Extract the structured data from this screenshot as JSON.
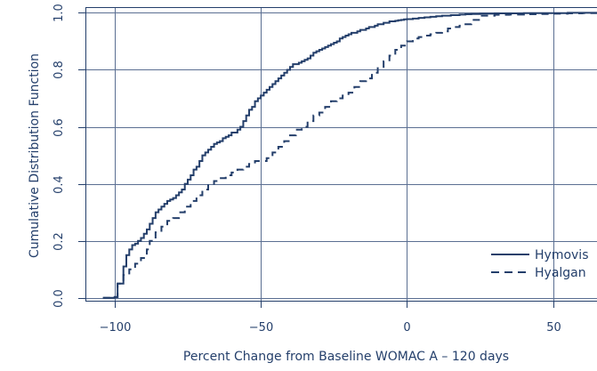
{
  "chart_data": {
    "type": "line",
    "title": "",
    "xlabel": "Percent Change from Baseline WOMAC A – 120 days",
    "ylabel": "Cumulative Distribution Function",
    "xlim": [
      -110,
      65
    ],
    "ylim": [
      -0.01,
      1.02
    ],
    "x_ticks": [
      -100,
      -50,
      0,
      50
    ],
    "x_tick_labels": [
      "−100",
      "−50",
      "0",
      "50"
    ],
    "y_ticks": [
      0,
      0.2,
      0.4,
      0.6,
      0.8,
      1.0
    ],
    "y_tick_labels": [
      "0.0",
      "0.2",
      "0.4",
      "0.6",
      "0.8",
      "1.0"
    ],
    "grid": true,
    "legend_position": "bottom-right",
    "colors": {
      "ink": "#243f6b",
      "grid": "#5b6f92"
    },
    "series": [
      {
        "name": "Hymovis",
        "line_style": "solid",
        "x": [
          -104,
          -100,
          -99,
          -97,
          -96,
          -95,
          -94,
          -93,
          -92,
          -91,
          -90,
          -89,
          -88,
          -87,
          -86,
          -85,
          -84,
          -83,
          -82,
          -81,
          -80,
          -79,
          -78,
          -77,
          -76,
          -75,
          -74,
          -73,
          -72,
          -71,
          -70,
          -69,
          -68,
          -67,
          -66,
          -65,
          -64,
          -63,
          -62,
          -61,
          -60,
          -59,
          -58,
          -57,
          -56,
          -55,
          -54,
          -53,
          -52,
          -51,
          -50,
          -49,
          -48,
          -47,
          -46,
          -45,
          -44,
          -43,
          -42,
          -41,
          -40,
          -39,
          -38,
          -37,
          -36,
          -35,
          -34,
          -33,
          -32,
          -31,
          -30,
          -29,
          -28,
          -27,
          -26,
          -25,
          -24,
          -23,
          -22,
          -21,
          -20,
          -19,
          -18,
          -17,
          -16,
          -15,
          -14,
          -13,
          -12,
          -11,
          -10,
          -9,
          -8,
          -7,
          -6,
          -5,
          -4,
          -3,
          -2,
          -1,
          0,
          2,
          4,
          6,
          8,
          10,
          12,
          15,
          18,
          20,
          22,
          25,
          30,
          35,
          40,
          45,
          50,
          55,
          60,
          63
        ],
        "y": [
          0.0,
          0.003,
          0.05,
          0.11,
          0.15,
          0.17,
          0.185,
          0.19,
          0.2,
          0.21,
          0.225,
          0.24,
          0.26,
          0.28,
          0.3,
          0.31,
          0.32,
          0.33,
          0.34,
          0.345,
          0.35,
          0.36,
          0.37,
          0.38,
          0.4,
          0.415,
          0.43,
          0.45,
          0.46,
          0.48,
          0.5,
          0.51,
          0.52,
          0.53,
          0.54,
          0.545,
          0.55,
          0.56,
          0.565,
          0.57,
          0.58,
          0.58,
          0.59,
          0.6,
          0.62,
          0.64,
          0.66,
          0.67,
          0.69,
          0.7,
          0.71,
          0.72,
          0.73,
          0.74,
          0.75,
          0.76,
          0.77,
          0.78,
          0.79,
          0.8,
          0.81,
          0.82,
          0.82,
          0.825,
          0.83,
          0.835,
          0.84,
          0.85,
          0.86,
          0.865,
          0.87,
          0.875,
          0.88,
          0.885,
          0.89,
          0.895,
          0.9,
          0.91,
          0.915,
          0.92,
          0.925,
          0.93,
          0.93,
          0.935,
          0.94,
          0.94,
          0.945,
          0.95,
          0.95,
          0.955,
          0.96,
          0.96,
          0.965,
          0.965,
          0.97,
          0.97,
          0.972,
          0.974,
          0.975,
          0.977,
          0.978,
          0.98,
          0.982,
          0.984,
          0.986,
          0.988,
          0.99,
          0.992,
          0.994,
          0.995,
          0.996,
          0.997,
          0.998,
          0.998,
          0.999,
          0.999,
          0.999,
          1.0,
          1.0,
          1.0
        ]
      },
      {
        "name": "Hyalgan",
        "line_style": "dashed",
        "x": [
          -104,
          -100,
          -99,
          -97,
          -95,
          -93,
          -91,
          -89,
          -88,
          -86,
          -84,
          -82,
          -80,
          -78,
          -76,
          -74,
          -72,
          -70,
          -68,
          -66,
          -64,
          -62,
          -60,
          -58,
          -56,
          -54,
          -52,
          -50,
          -48,
          -46,
          -44,
          -42,
          -40,
          -38,
          -36,
          -34,
          -32,
          -30,
          -28,
          -26,
          -24,
          -22,
          -20,
          -18,
          -16,
          -14,
          -12,
          -10,
          -8,
          -6,
          -4,
          -2,
          0,
          2,
          4,
          6,
          8,
          10,
          12,
          14,
          16,
          18,
          20,
          22,
          25,
          30,
          35,
          40,
          45,
          50,
          55,
          60,
          63
        ],
        "y": [
          0.0,
          0.003,
          0.05,
          0.08,
          0.1,
          0.12,
          0.14,
          0.17,
          0.2,
          0.23,
          0.25,
          0.27,
          0.28,
          0.3,
          0.32,
          0.34,
          0.36,
          0.38,
          0.4,
          0.41,
          0.42,
          0.43,
          0.44,
          0.45,
          0.46,
          0.47,
          0.48,
          0.48,
          0.49,
          0.51,
          0.53,
          0.55,
          0.57,
          0.59,
          0.6,
          0.62,
          0.64,
          0.65,
          0.67,
          0.69,
          0.7,
          0.71,
          0.72,
          0.74,
          0.76,
          0.77,
          0.79,
          0.81,
          0.83,
          0.85,
          0.87,
          0.885,
          0.9,
          0.91,
          0.915,
          0.92,
          0.925,
          0.93,
          0.935,
          0.945,
          0.95,
          0.955,
          0.96,
          0.975,
          0.99,
          0.993,
          0.994,
          0.995,
          0.996,
          0.997,
          0.998,
          0.999,
          0.999
        ]
      }
    ]
  }
}
